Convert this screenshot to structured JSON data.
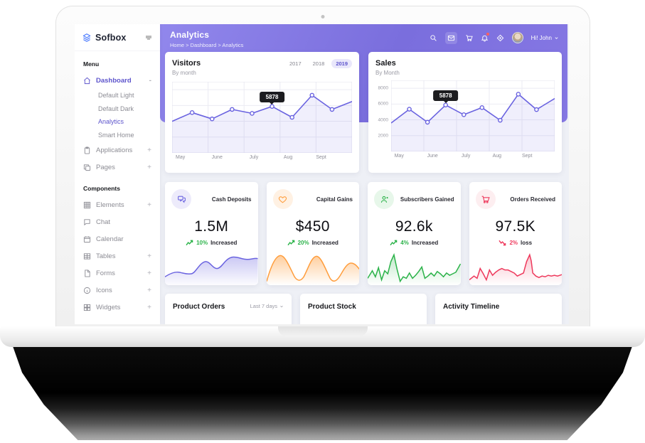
{
  "sidebar": {
    "logo_text": "Sofbox",
    "menu_heading": "Menu",
    "components_heading": "Components",
    "dashboard": {
      "label": "Dashboard",
      "collapse_indicator": "-",
      "icon": "home-icon"
    },
    "dashboard_children": [
      {
        "label": "Default Light",
        "active": false
      },
      {
        "label": "Default Dark",
        "active": false
      },
      {
        "label": "Analytics",
        "active": true
      },
      {
        "label": "Smart Home",
        "active": false
      }
    ],
    "menu_items": [
      {
        "label": "Applications",
        "expand": "+",
        "icon": "clipboard-icon"
      },
      {
        "label": "Pages",
        "expand": "+",
        "icon": "pages-icon"
      }
    ],
    "component_items": [
      {
        "label": "Elements",
        "expand": "+",
        "icon": "grid-icon"
      },
      {
        "label": "Chat",
        "expand": "",
        "icon": "chat-icon"
      },
      {
        "label": "Calendar",
        "expand": "",
        "icon": "calendar-icon"
      },
      {
        "label": "Tables",
        "expand": "+",
        "icon": "table-icon"
      },
      {
        "label": "Forms",
        "expand": "+",
        "icon": "file-icon"
      },
      {
        "label": "Icons",
        "expand": "+",
        "icon": "info-circle-icon"
      },
      {
        "label": "Widgets",
        "expand": "+",
        "icon": "widgets-icon"
      }
    ]
  },
  "header": {
    "title": "Analytics",
    "breadcrumb": "Home > Dashboard > Analytics",
    "icons": [
      "search-icon",
      "mail-icon",
      "cart-icon",
      "notifications-icon",
      "focus-mode-icon"
    ],
    "user_greeting": "Hi! John",
    "accent_color": "#7d72e1"
  },
  "visitors_card": {
    "title": "Visitors",
    "subtitle": "By month",
    "years": [
      "2017",
      "2018",
      "2019"
    ],
    "active_year": "2019"
  },
  "sales_card": {
    "title": "Sales",
    "subtitle": "By Month"
  },
  "chart_data": [
    {
      "id": "visitors",
      "type": "line",
      "title": "Visitors",
      "x_labels": [
        "May",
        "June",
        "July",
        "Aug",
        "Sept"
      ],
      "values": [
        4000,
        5100,
        4300,
        5500,
        5000,
        5878,
        4500,
        7300,
        5500,
        6500
      ],
      "tooltip": {
        "index": 5,
        "label": "5878"
      },
      "ylim": [
        0,
        9000
      ],
      "y_ticks": [],
      "grid": true,
      "legend": false,
      "line_color": "#6a63e0"
    },
    {
      "id": "sales",
      "type": "line",
      "title": "Sales",
      "x_labels": [
        "May",
        "June",
        "July",
        "Aug",
        "Sept"
      ],
      "y_ticks": [
        8000,
        6000,
        4000,
        2000
      ],
      "values": [
        3600,
        5350,
        3700,
        5878,
        4650,
        5550,
        3950,
        7250,
        5300,
        6700
      ],
      "tooltip": {
        "index": 3,
        "label": "5878"
      },
      "ylim": [
        0,
        9000
      ],
      "grid": true,
      "legend": false,
      "line_color": "#6a63e0"
    }
  ],
  "stats": [
    {
      "label": "Cash Deposits",
      "value": "1.5M",
      "percent": "10%",
      "trend_text": "Increased",
      "direction": "up",
      "icon": "chat-bubbles-icon",
      "color": "#6a63e0"
    },
    {
      "label": "Capital Gains",
      "value": "$450",
      "percent": "20%",
      "trend_text": "Increased",
      "direction": "up",
      "icon": "heart-icon",
      "color": "#ff9d3c"
    },
    {
      "label": "Subscribers Gained",
      "value": "92.6k",
      "percent": "4%",
      "trend_text": "Increased",
      "direction": "up",
      "icon": "user-icon",
      "color": "#2cb34a"
    },
    {
      "label": "Orders Received",
      "value": "97.5K",
      "percent": "2%",
      "trend_text": "loss",
      "direction": "down",
      "icon": "cart-icon",
      "color": "#ee3a5d"
    }
  ],
  "bottom_cards": [
    {
      "title": "Product Orders",
      "filter": "Last 7 days"
    },
    {
      "title": "Product Stock",
      "filter": ""
    },
    {
      "title": "Activity Timeline",
      "filter": ""
    }
  ]
}
